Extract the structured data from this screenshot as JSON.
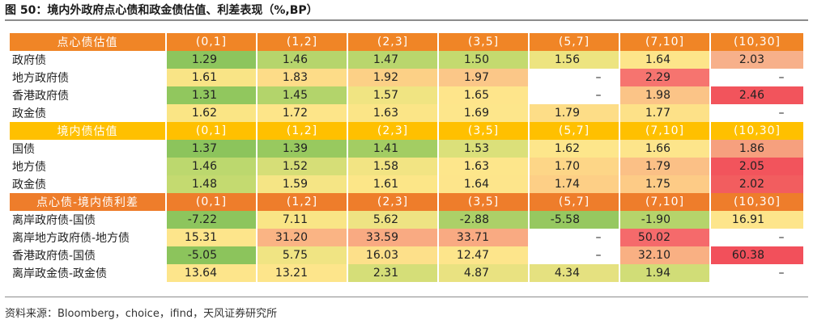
{
  "title": "图 50：境内外政府点心债和政金债估值、利差表现（%,BP）",
  "source": "资料来源：Bloomberg，choice，ifind，天风证券研究所",
  "sections": [
    {
      "header": [
        "点心债估值",
        "(0,1]",
        "(1,2]",
        "(2,3]",
        "(3,5]",
        "(5,7]",
        "(7,10]",
        "(10,30]"
      ],
      "rows": [
        {
          "label": "政府债",
          "cells": [
            {
              "v": "1.29",
              "c": "#8dc55d"
            },
            {
              "v": "1.46",
              "c": "#b6d56c"
            },
            {
              "v": "1.47",
              "c": "#b9d66d"
            },
            {
              "v": "1.50",
              "c": "#c4da6f"
            },
            {
              "v": "1.56",
              "c": "#ede480"
            },
            {
              "v": "1.64",
              "c": "#fde58a"
            },
            {
              "v": "2.03",
              "c": "#f7b08a"
            }
          ]
        },
        {
          "label": "地方政府债",
          "cells": [
            {
              "v": "1.61",
              "c": "#f9e486"
            },
            {
              "v": "1.83",
              "c": "#fddc88"
            },
            {
              "v": "1.92",
              "c": "#fcd086"
            },
            {
              "v": "1.97",
              "c": "#fbc788"
            },
            {
              "v": "–",
              "c": "#ffffff"
            },
            {
              "v": "2.29",
              "c": "#f6746f"
            },
            {
              "v": "–",
              "c": "#ffffff"
            }
          ]
        },
        {
          "label": "香港政府债",
          "cells": [
            {
              "v": "1.31",
              "c": "#91c75e"
            },
            {
              "v": "1.45",
              "c": "#b3d46b"
            },
            {
              "v": "1.57",
              "c": "#f0e482"
            },
            {
              "v": "1.65",
              "c": "#fee58b"
            },
            {
              "v": "–",
              "c": "#ffffff"
            },
            {
              "v": "1.98",
              "c": "#fbc487"
            },
            {
              "v": "2.46",
              "c": "#f2545c"
            }
          ]
        },
        {
          "label": "政金债",
          "cells": [
            {
              "v": "1.62",
              "c": "#fae585"
            },
            {
              "v": "1.72",
              "c": "#fde589"
            },
            {
              "v": "1.63",
              "c": "#fbe587"
            },
            {
              "v": "1.69",
              "c": "#fde68b"
            },
            {
              "v": "1.79",
              "c": "#fddd87"
            },
            {
              "v": "1.77",
              "c": "#fde188"
            },
            {
              "v": "–",
              "c": "#ffffff"
            }
          ]
        }
      ]
    },
    {
      "header": [
        "境内债估值",
        "(0,1]",
        "(1,2]",
        "(2,3]",
        "(3,5]",
        "(5,7]",
        "(7,10]",
        "(10,30]"
      ],
      "rows": [
        {
          "label": "国债",
          "cells": [
            {
              "v": "1.37",
              "c": "#8cc45c"
            },
            {
              "v": "1.39",
              "c": "#98c95f"
            },
            {
              "v": "1.41",
              "c": "#a3cd63"
            },
            {
              "v": "1.53",
              "c": "#dbe07a"
            },
            {
              "v": "1.62",
              "c": "#fde68b"
            },
            {
              "v": "1.66",
              "c": "#fde58b"
            },
            {
              "v": "1.86",
              "c": "#f6a07e"
            }
          ]
        },
        {
          "label": "地方债",
          "cells": [
            {
              "v": "1.46",
              "c": "#bcd86e"
            },
            {
              "v": "1.52",
              "c": "#d6de77"
            },
            {
              "v": "1.58",
              "c": "#f2e483"
            },
            {
              "v": "1.63",
              "c": "#fde68b"
            },
            {
              "v": "1.70",
              "c": "#fdd687"
            },
            {
              "v": "1.79",
              "c": "#fbc086"
            },
            {
              "v": "2.05",
              "c": "#f2545c"
            }
          ]
        },
        {
          "label": "政金债",
          "cells": [
            {
              "v": "1.48",
              "c": "#c4da70"
            },
            {
              "v": "1.59",
              "c": "#f5e585"
            },
            {
              "v": "1.61",
              "c": "#fce688"
            },
            {
              "v": "1.64",
              "c": "#fde58b"
            },
            {
              "v": "1.74",
              "c": "#fdcf86"
            },
            {
              "v": "1.75",
              "c": "#fdcb86"
            },
            {
              "v": "2.02",
              "c": "#f25d5f"
            }
          ]
        }
      ]
    },
    {
      "header": [
        "点心债-境内债利差",
        "(0,1]",
        "(1,2]",
        "(2,3]",
        "(3,5]",
        "(5,7]",
        "(7,10]",
        "(10,30]"
      ],
      "rows": [
        {
          "label": "离岸政府债-国债",
          "cells": [
            {
              "v": "-7.22",
              "c": "#8dc55d"
            },
            {
              "v": "7.11",
              "c": "#f9e586"
            },
            {
              "v": "5.62",
              "c": "#eee383"
            },
            {
              "v": "-2.88",
              "c": "#acd068"
            },
            {
              "v": "-5.58",
              "c": "#96c860"
            },
            {
              "v": "-1.90",
              "c": "#b5d46b"
            },
            {
              "v": "16.91",
              "c": "#fde58b"
            }
          ]
        },
        {
          "label": "离岸地方政府债-地方债",
          "cells": [
            {
              "v": "15.31",
              "c": "#fde58b"
            },
            {
              "v": "31.20",
              "c": "#fab484"
            },
            {
              "v": "33.59",
              "c": "#f9aa82"
            },
            {
              "v": "33.71",
              "c": "#f9aa82"
            },
            {
              "v": "–",
              "c": "#ffffff"
            },
            {
              "v": "50.02",
              "c": "#f56a6b"
            },
            {
              "v": "–",
              "c": "#ffffff"
            }
          ]
        },
        {
          "label": "香港政府债-国债",
          "cells": [
            {
              "v": "-5.05",
              "c": "#8cc45c"
            },
            {
              "v": "5.75",
              "c": "#f0e483"
            },
            {
              "v": "16.03",
              "c": "#fde08a"
            },
            {
              "v": "12.47",
              "c": "#fde58b"
            },
            {
              "v": "–",
              "c": "#ffffff"
            },
            {
              "v": "32.10",
              "c": "#f9b083"
            },
            {
              "v": "60.38",
              "c": "#f2505b"
            }
          ]
        },
        {
          "label": "离岸政金债-政金债",
          "cells": [
            {
              "v": "13.64",
              "c": "#fde58b"
            },
            {
              "v": "13.21",
              "c": "#fde58b"
            },
            {
              "v": "2.31",
              "c": "#d5de78"
            },
            {
              "v": "4.87",
              "c": "#e9e281"
            },
            {
              "v": "4.34",
              "c": "#e5e180"
            },
            {
              "v": "1.94",
              "c": "#d1dd77"
            },
            {
              "v": "–",
              "c": "#ffffff"
            }
          ]
        }
      ]
    }
  ]
}
